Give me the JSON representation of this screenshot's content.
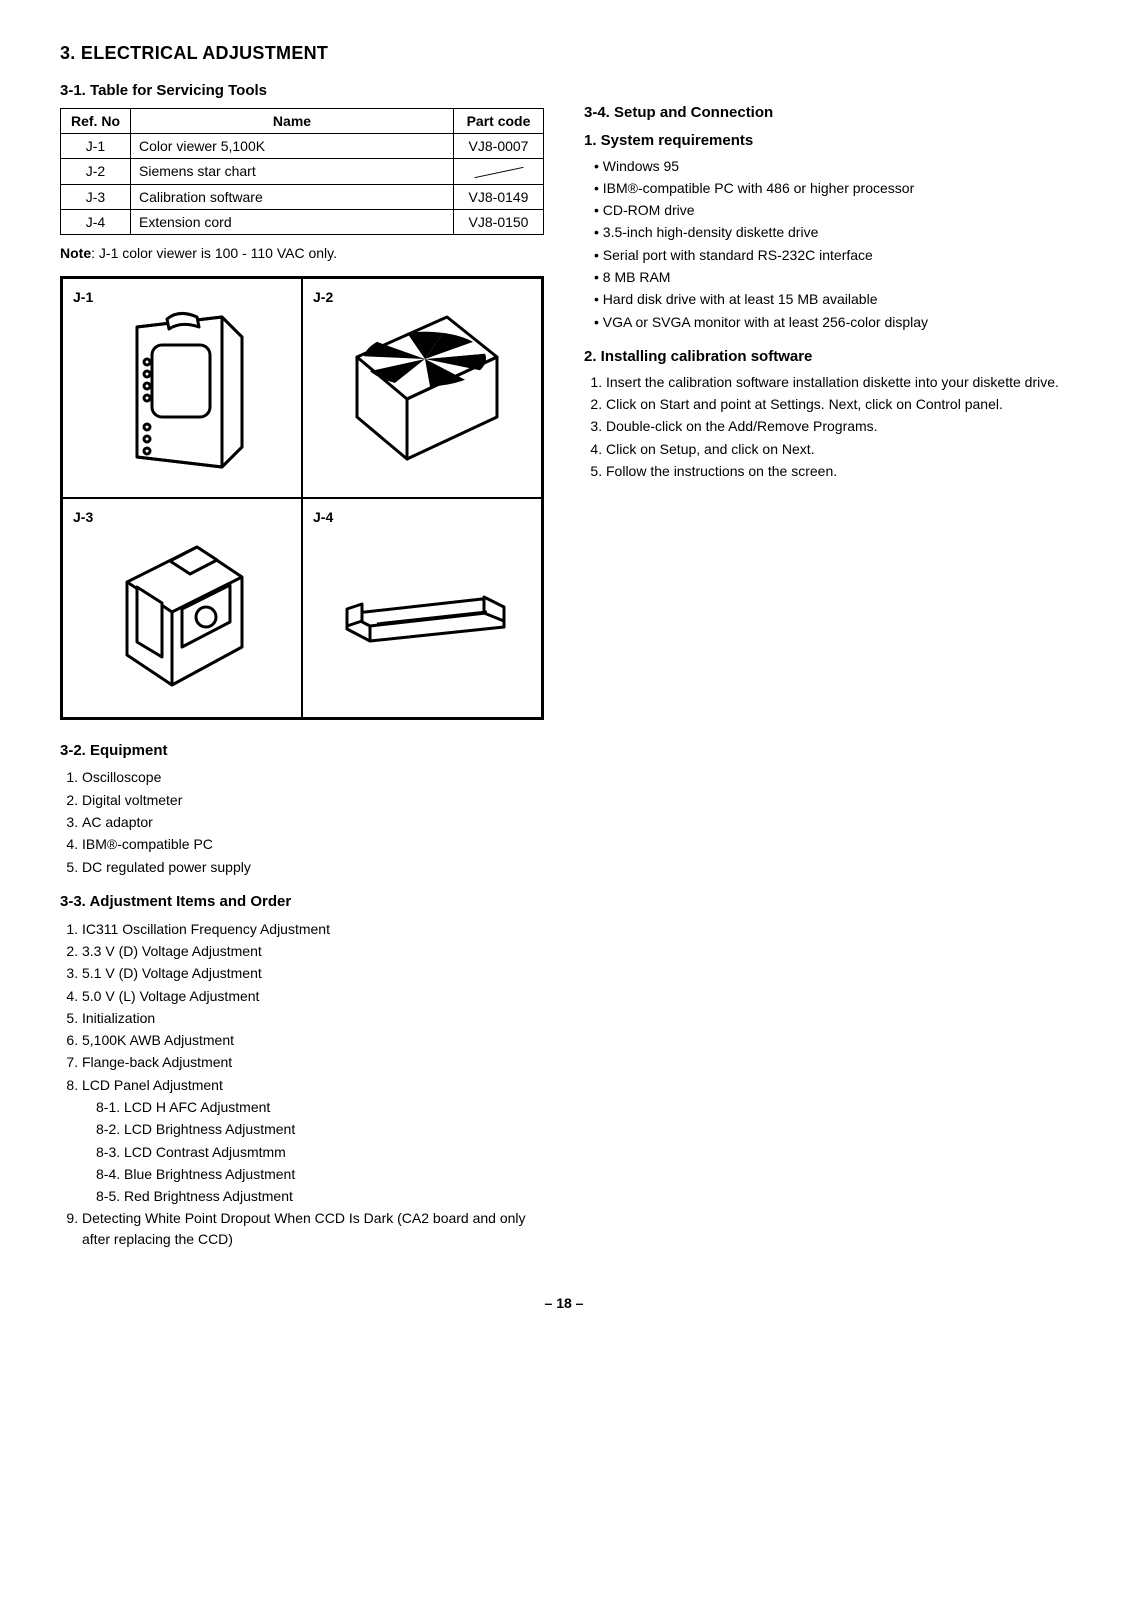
{
  "main_heading": "3. ELECTRICAL ADJUSTMENT",
  "s31": {
    "heading": "3-1. Table for Servicing Tools",
    "table": {
      "headers": [
        "Ref. No",
        "Name",
        "Part code"
      ],
      "rows": [
        [
          "J-1",
          "Color viewer 5,100K",
          "VJ8-0007"
        ],
        [
          "J-2",
          "Siemens star chart",
          "__DIAG__"
        ],
        [
          "J-3",
          "Calibration software",
          "VJ8-0149"
        ],
        [
          "J-4",
          "Extension cord",
          "VJ8-0150"
        ]
      ]
    },
    "note_label": "Note",
    "note_text": ": J-1 color viewer is 100 - 110 VAC only.",
    "illus_labels": [
      "J-1",
      "J-2",
      "J-3",
      "J-4"
    ]
  },
  "s32": {
    "heading": "3-2. Equipment",
    "items": [
      "Oscilloscope",
      "Digital voltmeter",
      "AC adaptor",
      "IBM®-compatible PC",
      "DC regulated power supply"
    ]
  },
  "s33": {
    "heading": "3-3. Adjustment Items and Order",
    "items": [
      "IC311 Oscillation Frequency Adjustment",
      "3.3 V (D) Voltage Adjustment",
      "5.1 V (D) Voltage Adjustment",
      "5.0 V (L) Voltage Adjustment",
      "Initialization",
      "5,100K AWB Adjustment",
      "Flange-back Adjustment",
      "LCD Panel Adjustment",
      "Detecting White Point Dropout When CCD Is Dark (CA2 board and only after replacing the CCD)"
    ],
    "subitems": [
      "8-1. LCD H AFC Adjustment",
      "8-2. LCD Brightness Adjustment",
      "8-3. LCD Contrast Adjusmtmm",
      "8-4. Blue Brightness Adjustment",
      "8-5. Red Brightness Adjustment"
    ]
  },
  "s34": {
    "heading": "3-4. Setup and Connection",
    "sys_req_heading": "1. System requirements",
    "sys_req": [
      "Windows 95",
      "IBM®-compatible PC with 486 or higher processor",
      "CD-ROM drive",
      "3.5-inch high-density diskette drive",
      "Serial port with standard RS-232C interface",
      "8 MB RAM",
      "Hard disk drive with at least 15 MB available",
      "VGA or SVGA monitor with at least 256-color display"
    ],
    "install_heading": "2. Installing calibration software",
    "install_steps": [
      "Insert the calibration software installation diskette into your diskette drive.",
      "Click on Start and point at Settings. Next, click on Control panel.",
      "Double-click on the Add/Remove Programs.",
      "Click on Setup, and click on Next.",
      "Follow the instructions on the screen."
    ]
  },
  "page_number": "– 18 –"
}
